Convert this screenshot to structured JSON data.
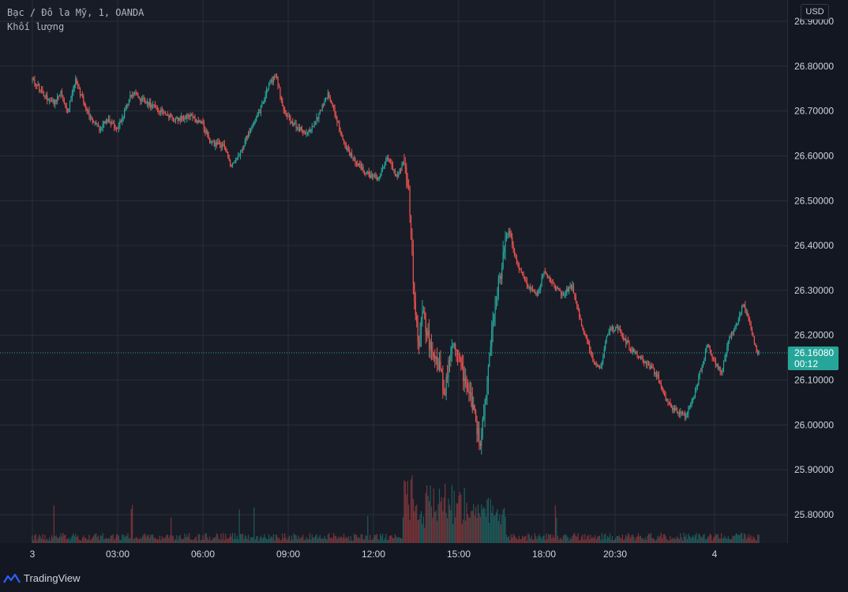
{
  "legend": {
    "symbol": "Bạc / Đô la Mỹ, 1, OANDA",
    "volume_label": "Khối lượng"
  },
  "currency_button": "USD",
  "last_price": {
    "value": "26.16080",
    "countdown": "00:12",
    "color": "#26a69a"
  },
  "brand": {
    "name": "TradingView",
    "icon": "tradingview-logo-icon"
  },
  "colors": {
    "up": "#26a69a",
    "down": "#ef5350",
    "grid": "#2a2e39",
    "background": "#181c27",
    "text": "#d1d4dc"
  },
  "chart_data": {
    "type": "candlestick",
    "title": "Bạc / Đô la Mỹ, 1, OANDA",
    "y_axis": {
      "ylim": [
        25.73,
        26.93
      ],
      "ticks": [
        "26.90000",
        "26.80000",
        "26.70000",
        "26.60000",
        "26.50000",
        "26.40000",
        "26.30000",
        "26.20000",
        "26.10000",
        "26.00000",
        "25.90000",
        "25.80000"
      ]
    },
    "x_axis": {
      "ticks": [
        "3",
        "03:00",
        "06:00",
        "09:00",
        "12:00",
        "15:00",
        "18:00",
        "20:30",
        "4"
      ]
    },
    "price_path": [
      [
        "00:00",
        26.77
      ],
      [
        "00:30",
        26.73
      ],
      [
        "00:45",
        26.72
      ],
      [
        "01:00",
        26.74
      ],
      [
        "01:15",
        26.7
      ],
      [
        "01:30",
        26.77
      ],
      [
        "02:00",
        26.69
      ],
      [
        "02:20",
        26.66
      ],
      [
        "02:40",
        26.68
      ],
      [
        "03:00",
        26.66
      ],
      [
        "03:15",
        26.7
      ],
      [
        "03:30",
        26.74
      ],
      [
        "04:00",
        26.72
      ],
      [
        "04:30",
        26.7
      ],
      [
        "05:00",
        26.68
      ],
      [
        "05:30",
        26.69
      ],
      [
        "06:00",
        26.67
      ],
      [
        "06:15",
        26.63
      ],
      [
        "06:45",
        26.62
      ],
      [
        "07:00",
        26.58
      ],
      [
        "07:20",
        26.61
      ],
      [
        "07:40",
        26.66
      ],
      [
        "08:00",
        26.7
      ],
      [
        "08:20",
        26.76
      ],
      [
        "08:35",
        26.78
      ],
      [
        "08:50",
        26.7
      ],
      [
        "09:10",
        26.67
      ],
      [
        "09:40",
        26.65
      ],
      [
        "10:00",
        26.68
      ],
      [
        "10:25",
        26.74
      ],
      [
        "10:40",
        26.69
      ],
      [
        "11:00",
        26.62
      ],
      [
        "11:20",
        26.59
      ],
      [
        "11:45",
        26.56
      ],
      [
        "12:10",
        26.55
      ],
      [
        "12:30",
        26.6
      ],
      [
        "12:50",
        26.55
      ],
      [
        "13:05",
        26.59
      ],
      [
        "13:15",
        26.51
      ],
      [
        "13:25",
        26.3
      ],
      [
        "13:35",
        26.18
      ],
      [
        "13:45",
        26.25
      ],
      [
        "14:00",
        26.17
      ],
      [
        "14:15",
        26.15
      ],
      [
        "14:30",
        26.07
      ],
      [
        "14:45",
        26.18
      ],
      [
        "15:00",
        26.16
      ],
      [
        "15:15",
        26.08
      ],
      [
        "15:30",
        26.04
      ],
      [
        "15:45",
        25.96
      ],
      [
        "16:00",
        26.1
      ],
      [
        "16:15",
        26.26
      ],
      [
        "16:30",
        26.35
      ],
      [
        "16:45",
        26.44
      ],
      [
        "17:00",
        26.37
      ],
      [
        "17:20",
        26.32
      ],
      [
        "17:45",
        26.29
      ],
      [
        "18:00",
        26.34
      ],
      [
        "18:20",
        26.31
      ],
      [
        "18:40",
        26.29
      ],
      [
        "19:00",
        26.31
      ],
      [
        "19:15",
        26.24
      ],
      [
        "19:30",
        26.19
      ],
      [
        "19:45",
        26.14
      ],
      [
        "20:00",
        26.13
      ],
      [
        "20:15",
        26.21
      ],
      [
        "20:35",
        26.22
      ],
      [
        "20:50",
        26.19
      ],
      [
        "21:10",
        26.16
      ],
      [
        "21:35",
        26.14
      ],
      [
        "22:00",
        26.11
      ],
      [
        "22:20",
        26.05
      ],
      [
        "22:40",
        26.03
      ],
      [
        "23:00",
        26.02
      ],
      [
        "23:15",
        26.06
      ],
      [
        "23:30",
        26.12
      ],
      [
        "23:45",
        26.18
      ],
      [
        "00:00",
        26.14
      ],
      [
        "00:15",
        26.12
      ],
      [
        "00:30",
        26.19
      ],
      [
        "00:45",
        26.22
      ],
      [
        "01:00",
        26.27
      ],
      [
        "01:15",
        26.22
      ],
      [
        "01:30",
        26.16
      ]
    ],
    "volume": {
      "baseline_segments": [
        {
          "from": "00:00",
          "to": "13:15",
          "level": "low"
        },
        {
          "from": "13:15",
          "to": "16:30",
          "level": "high"
        },
        {
          "from": "16:30",
          "to": "01:35",
          "level": "low"
        }
      ]
    }
  }
}
